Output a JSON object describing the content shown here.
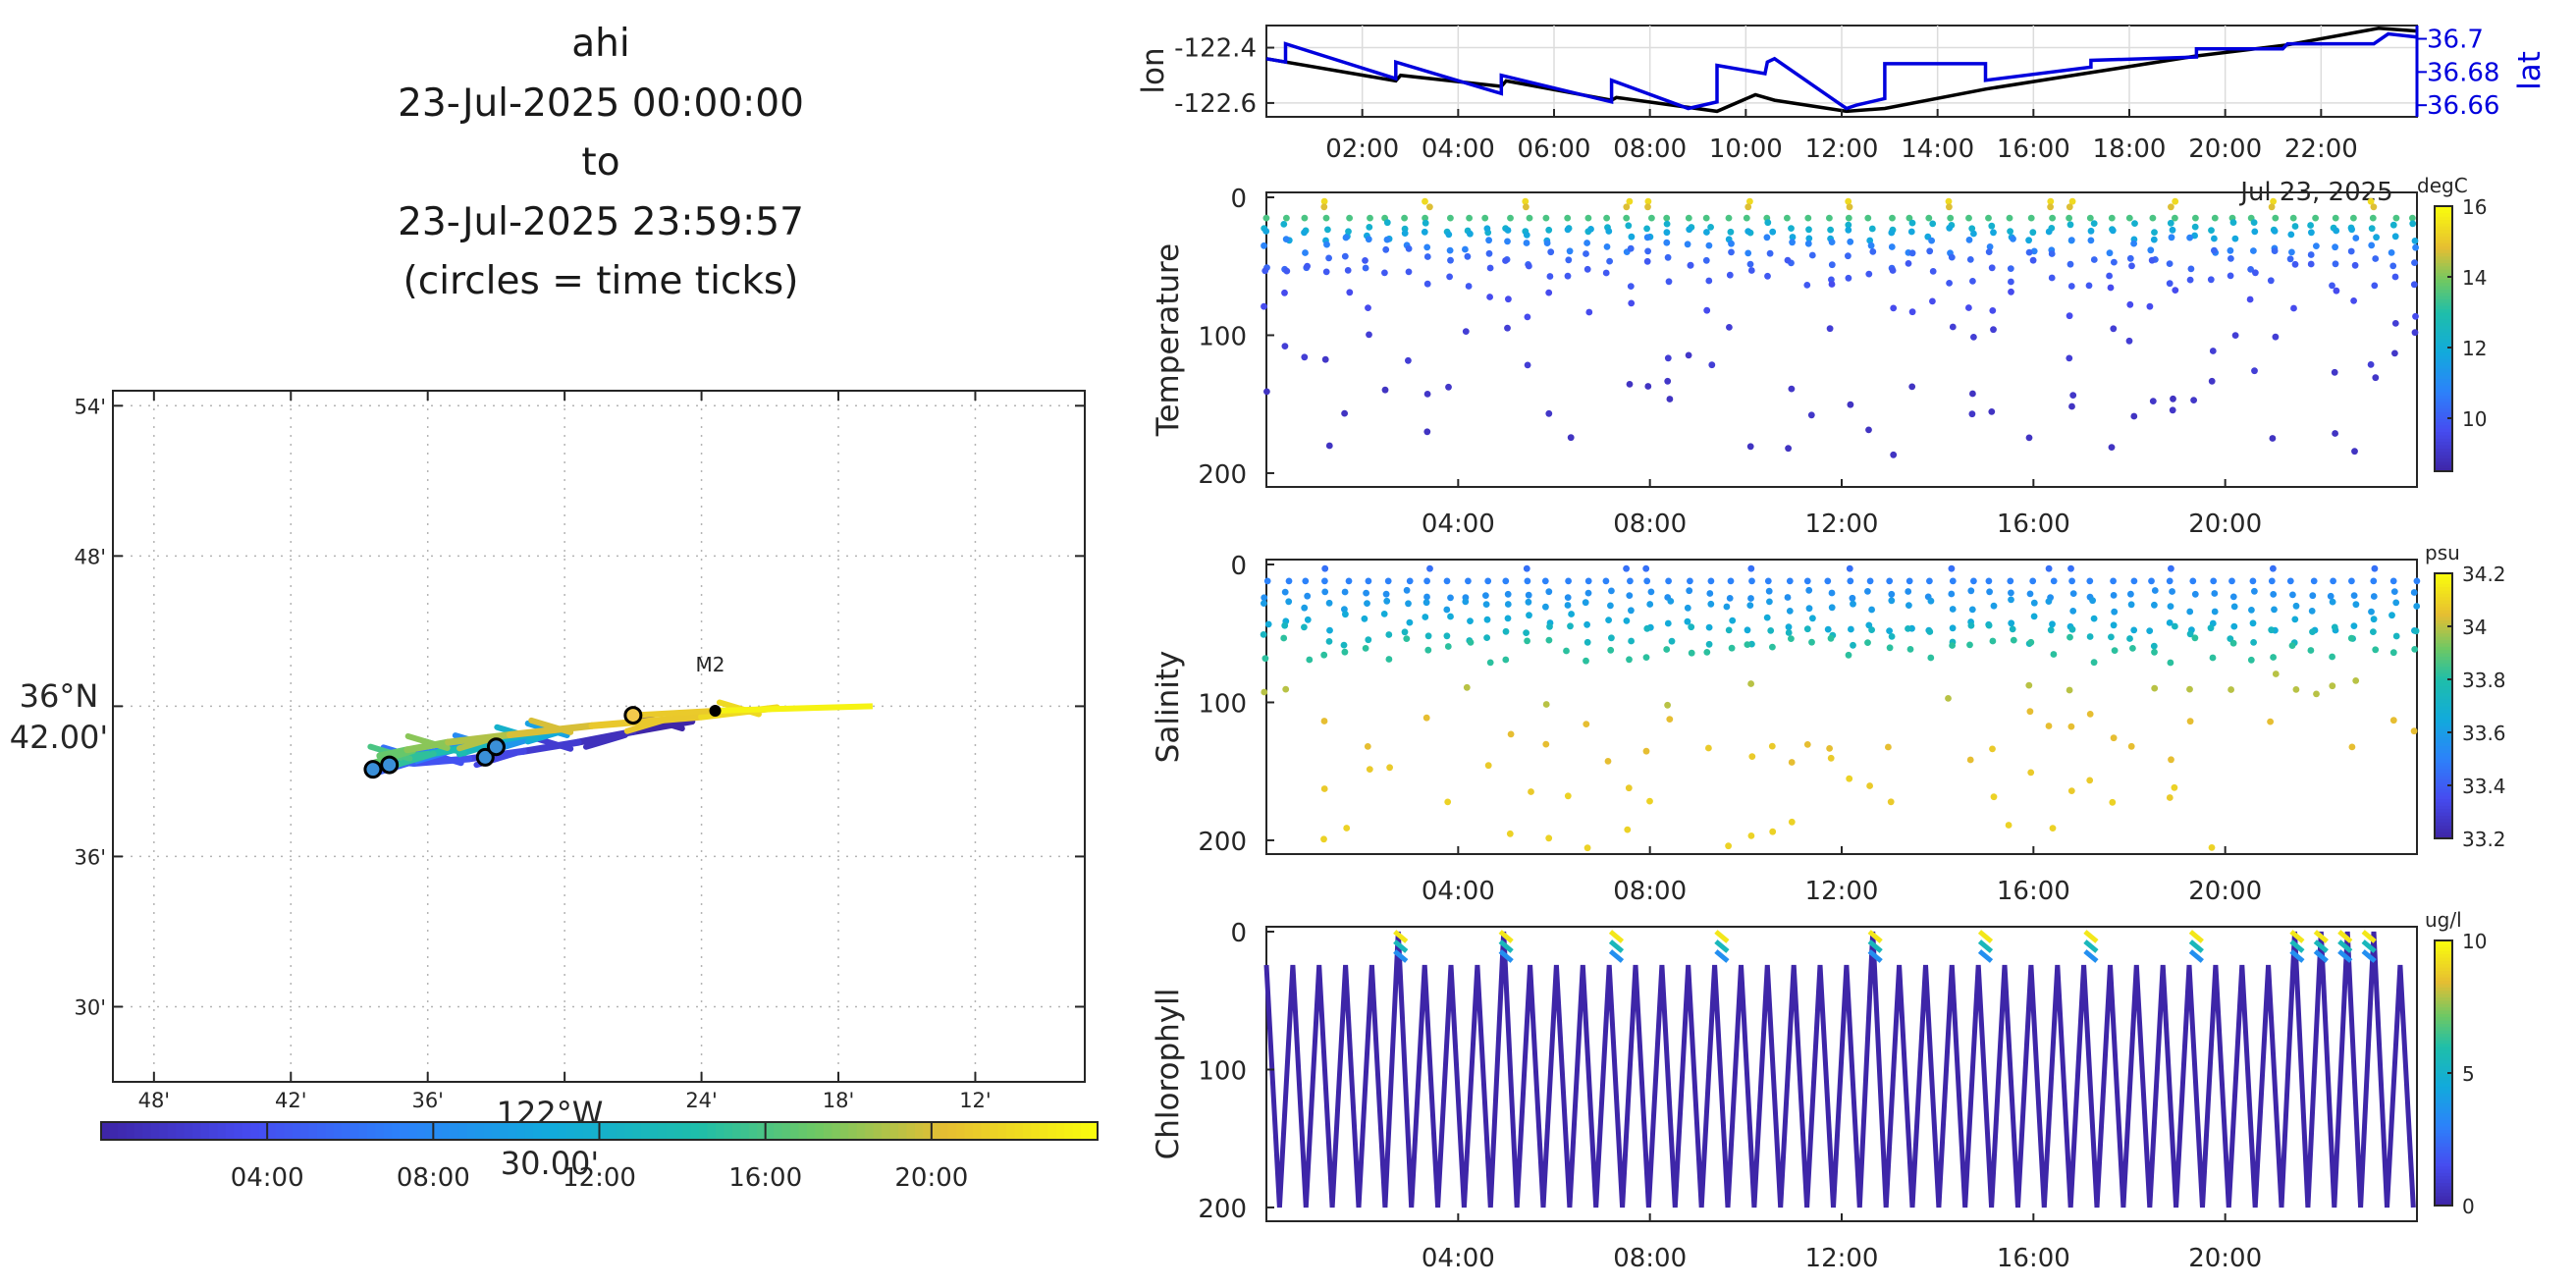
{
  "title": {
    "lines": [
      "ahi",
      "23-Jul-2025 00:00:00",
      "to",
      "23-Jul-2025 23:59:57",
      "(circles = time ticks)"
    ]
  },
  "colors": {
    "black": "#000000",
    "blue": "#0000dd",
    "parula_low": "#3e26a8",
    "parula_high": "#f9fb0e"
  },
  "chart_data": [
    {
      "id": "map",
      "type": "line",
      "lat_axis": {
        "tick_labels": [
          "54'",
          "48'",
          "42.00'",
          "36'",
          "30'"
        ],
        "center_label_lines": [
          "36°N",
          "42.00'"
        ],
        "range": [
          36.45,
          36.91
        ]
      },
      "lon_axis": {
        "tick_labels": [
          "48'",
          "42'",
          "36'",
          "30.00'",
          "24'",
          "18'",
          "12'"
        ],
        "center_label_lines": [
          "122°W",
          "30.00'"
        ],
        "range": [
          -122.83,
          -122.12
        ]
      },
      "station": {
        "name": "M2",
        "lon": -122.39,
        "lat": 36.697
      },
      "track": {
        "hours": [
          0,
          1,
          2,
          3,
          4,
          5,
          6,
          7,
          8,
          9,
          10,
          11,
          12,
          13,
          14,
          15,
          16,
          17,
          18,
          19,
          20,
          21,
          22,
          23.5
        ],
        "lon": [
          -122.407,
          -122.45,
          -122.49,
          -122.53,
          -122.57,
          -122.61,
          -122.63,
          -122.606,
          -122.581,
          -122.55,
          -122.52,
          -122.505,
          -122.52,
          -122.55,
          -122.575,
          -122.6,
          -122.62,
          -122.635,
          -122.615,
          -122.585,
          -122.54,
          -122.48,
          -122.4,
          -122.345
        ],
        "lat": [
          36.69,
          36.683,
          36.676,
          36.67,
          36.665,
          36.662,
          36.664,
          36.668,
          36.672,
          36.676,
          36.68,
          36.684,
          36.682,
          36.677,
          36.672,
          36.668,
          36.666,
          36.667,
          36.671,
          36.676,
          36.681,
          36.687,
          36.693,
          36.699
        ]
      },
      "time_tick_circles": [
        {
          "lon": -122.64,
          "lat": 36.658
        },
        {
          "lon": -122.628,
          "lat": 36.661
        },
        {
          "lon": -122.558,
          "lat": 36.666
        },
        {
          "lon": -122.55,
          "lat": 36.673
        },
        {
          "lon": -122.45,
          "lat": 36.694
        }
      ],
      "colorbar": {
        "tick_labels": [
          "04:00",
          "08:00",
          "12:00",
          "16:00",
          "20:00"
        ],
        "tick_hours": [
          4,
          8,
          12,
          16,
          20
        ],
        "range_hours": [
          0,
          24
        ]
      }
    },
    {
      "id": "lonlat",
      "type": "line",
      "ylabel": "lon",
      "ylabel_right": "lat",
      "x_tick_labels": [
        "02:00",
        "04:00",
        "06:00",
        "08:00",
        "10:00",
        "12:00",
        "14:00",
        "16:00",
        "18:00",
        "20:00",
        "22:00"
      ],
      "x_tick_hours": [
        2,
        4,
        6,
        8,
        10,
        12,
        14,
        16,
        18,
        20,
        22
      ],
      "x_date_label": "Jul 23, 2025",
      "xlim_hours": [
        0,
        24
      ],
      "y_left_tick_labels": [
        "-122.4",
        "-122.6"
      ],
      "y_left_ticks": [
        -122.4,
        -122.6
      ],
      "ylim_left": [
        -122.65,
        -122.32
      ],
      "y_right_tick_labels": [
        "36.7",
        "36.68",
        "36.66"
      ],
      "y_right_ticks": [
        36.7,
        36.68,
        36.66
      ],
      "ylim_right": [
        36.653,
        36.708
      ],
      "series": [
        {
          "name": "lon",
          "hours": [
            0,
            2.7,
            2.8,
            4.9,
            5.0,
            7.2,
            7.3,
            9.4,
            10.2,
            10.6,
            12.1,
            12.9,
            15.0,
            17.2,
            19.4,
            21.3,
            23.2,
            24
          ],
          "values": [
            -122.44,
            -122.52,
            -122.5,
            -122.54,
            -122.52,
            -122.59,
            -122.58,
            -122.63,
            -122.57,
            -122.59,
            -122.63,
            -122.62,
            -122.55,
            -122.49,
            -122.43,
            -122.39,
            -122.33,
            -122.34
          ]
        },
        {
          "name": "lat",
          "hours": [
            0,
            0.4,
            0.4,
            2.7,
            2.7,
            4.9,
            4.9,
            7.2,
            7.2,
            8.8,
            9.4,
            9.4,
            10.4,
            10.45,
            10.6,
            11.9,
            12.1,
            12.3,
            12.9,
            12.9,
            15.0,
            15.0,
            17.2,
            17.2,
            19.4,
            19.4,
            21.2,
            21.3,
            23.1,
            23.4,
            24
          ],
          "values": [
            36.688,
            36.686,
            36.697,
            36.676,
            36.686,
            36.667,
            36.678,
            36.662,
            36.675,
            36.658,
            36.662,
            36.684,
            36.679,
            36.686,
            36.688,
            36.662,
            36.658,
            36.66,
            36.664,
            36.685,
            36.685,
            36.675,
            36.683,
            36.687,
            36.689,
            36.694,
            36.694,
            36.697,
            36.697,
            36.703,
            36.701
          ]
        }
      ]
    },
    {
      "id": "temperature",
      "type": "scatter",
      "ylabel": "Temperature",
      "units": "degC",
      "x_tick_labels": [
        "04:00",
        "08:00",
        "12:00",
        "16:00",
        "20:00"
      ],
      "x_tick_hours": [
        4,
        8,
        12,
        16,
        20
      ],
      "xlim_hours": [
        0,
        24
      ],
      "y_tick_labels": [
        "0",
        "100",
        "200"
      ],
      "y_ticks": [
        0,
        100,
        200
      ],
      "ylim_reversed": [
        0,
        210
      ],
      "colorbar": {
        "tick_labels": [
          "16",
          "14",
          "12",
          "10"
        ],
        "ticks": [
          16,
          14,
          12,
          10
        ],
        "clim": [
          8.5,
          16
        ]
      },
      "profiles": {
        "period_hours": 2.2,
        "surface_temp": 15.5,
        "points": [
          {
            "z": 3,
            "temp": 15.4
          },
          {
            "z": 7,
            "temp": 14.8
          },
          {
            "z": 15,
            "temp": 13.5
          },
          {
            "z": 22,
            "temp": 12.2
          },
          {
            "z": 27,
            "temp": 11.8
          },
          {
            "z": 35,
            "temp": 10.8
          },
          {
            "z": 45,
            "temp": 10.2
          },
          {
            "z": 55,
            "temp": 9.9
          },
          {
            "z": 75,
            "temp": 9.6
          },
          {
            "z": 110,
            "temp": 9.2
          },
          {
            "z": 135,
            "temp": 9.0
          },
          {
            "z": 160,
            "temp": 8.9
          }
        ]
      }
    },
    {
      "id": "salinity",
      "type": "scatter",
      "ylabel": "Salinity",
      "units": "psu",
      "x_tick_labels": [
        "04:00",
        "08:00",
        "12:00",
        "16:00",
        "20:00"
      ],
      "x_tick_hours": [
        4,
        8,
        12,
        16,
        20
      ],
      "xlim_hours": [
        0,
        24
      ],
      "y_tick_labels": [
        "0",
        "100",
        "200"
      ],
      "y_ticks": [
        0,
        100,
        200
      ],
      "ylim_reversed": [
        0,
        210
      ],
      "colorbar": {
        "tick_labels": [
          "34.2",
          "34",
          "33.8",
          "33.6",
          "33.4",
          "33.2"
        ],
        "ticks": [
          34.2,
          34.0,
          33.8,
          33.6,
          33.4,
          33.2
        ],
        "clim": [
          33.2,
          34.2
        ]
      },
      "profiles": {
        "points": [
          {
            "z": 3,
            "sal": 33.45
          },
          {
            "z": 12,
            "sal": 33.5
          },
          {
            "z": 22,
            "sal": 33.55
          },
          {
            "z": 30,
            "sal": 33.6
          },
          {
            "z": 42,
            "sal": 33.66
          },
          {
            "z": 52,
            "sal": 33.73
          },
          {
            "z": 62,
            "sal": 33.82
          },
          {
            "z": 90,
            "sal": 34.0
          },
          {
            "z": 125,
            "sal": 34.05
          },
          {
            "z": 155,
            "sal": 34.08
          },
          {
            "z": 180,
            "sal": 34.1
          }
        ]
      }
    },
    {
      "id": "chlorophyll",
      "type": "line",
      "ylabel": "Chlorophyll",
      "units": "ug/l",
      "x_tick_labels": [
        "04:00",
        "08:00",
        "12:00",
        "16:00",
        "20:00"
      ],
      "x_tick_hours": [
        4,
        8,
        12,
        16,
        20
      ],
      "xlim_hours": [
        0,
        24
      ],
      "y_tick_labels": [
        "0",
        "100",
        "200"
      ],
      "y_ticks": [
        0,
        100,
        200
      ],
      "ylim_reversed": [
        0,
        210
      ],
      "colorbar": {
        "tick_labels": [
          "10",
          "5",
          "0"
        ],
        "ticks": [
          10,
          5,
          0
        ],
        "clim": [
          0,
          10
        ]
      },
      "yo_period_hours": 0.55,
      "yo_depth_range": [
        0,
        200
      ],
      "surface_bursts_hours": [
        2.8,
        5.0,
        7.3,
        9.5,
        12.7,
        15.0,
        17.2,
        19.4,
        21.5,
        22.0,
        22.5,
        23.0
      ]
    }
  ]
}
